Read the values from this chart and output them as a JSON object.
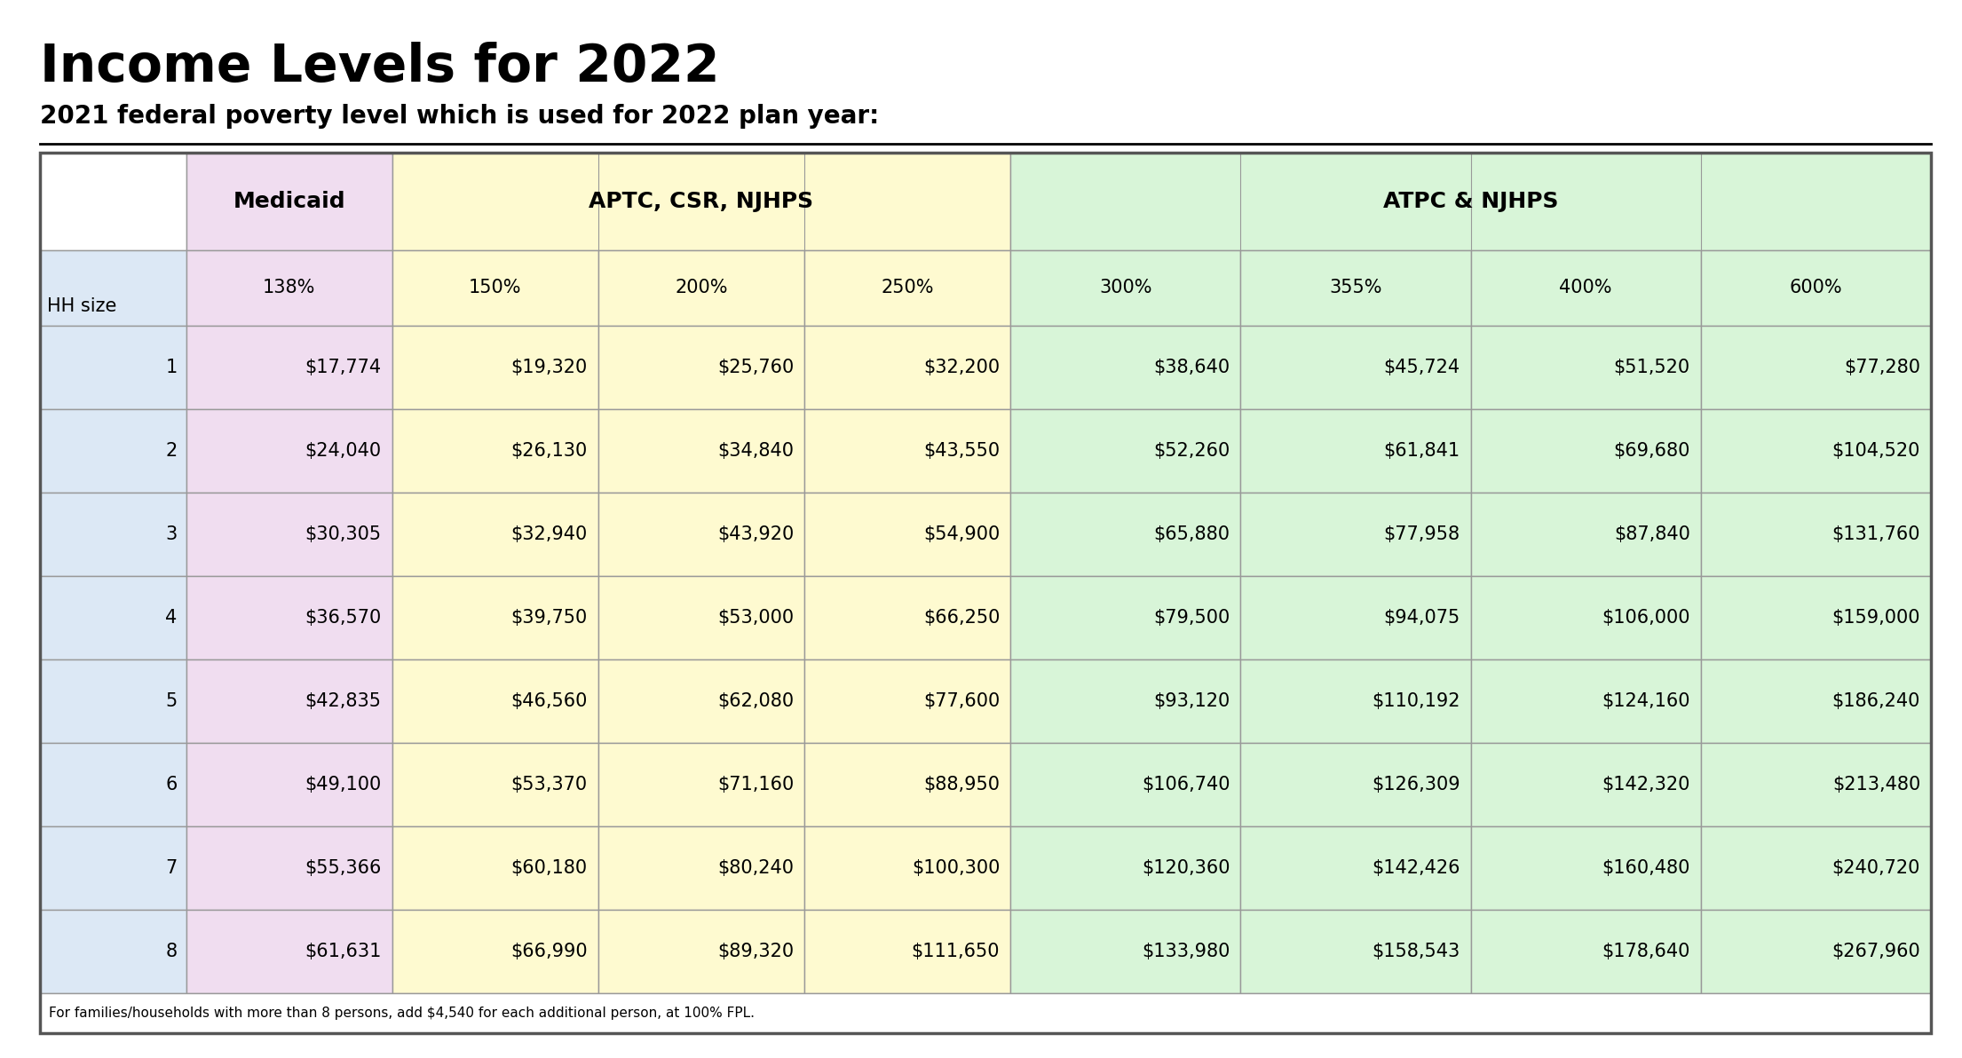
{
  "title": "Income Levels for 2022",
  "subtitle": "2021 federal poverty level which is used for 2022 plan year:",
  "footer": "For families/households with more than 8 persons, add $4,540 for each additional person, at 100% FPL.",
  "col_headers_row2": [
    "HH size",
    "138%",
    "150%",
    "200%",
    "250%",
    "300%",
    "355%",
    "400%",
    "600%"
  ],
  "rows": [
    [
      "1",
      "$17,774",
      "$19,320",
      "$25,760",
      "$32,200",
      "$38,640",
      "$45,724",
      "$51,520",
      "$77,280"
    ],
    [
      "2",
      "$24,040",
      "$26,130",
      "$34,840",
      "$43,550",
      "$52,260",
      "$61,841",
      "$69,680",
      "$104,520"
    ],
    [
      "3",
      "$30,305",
      "$32,940",
      "$43,920",
      "$54,900",
      "$65,880",
      "$77,958",
      "$87,840",
      "$131,760"
    ],
    [
      "4",
      "$36,570",
      "$39,750",
      "$53,000",
      "$66,250",
      "$79,500",
      "$94,075",
      "$106,000",
      "$159,000"
    ],
    [
      "5",
      "$42,835",
      "$46,560",
      "$62,080",
      "$77,600",
      "$93,120",
      "$110,192",
      "$124,160",
      "$186,240"
    ],
    [
      "6",
      "$49,100",
      "$53,370",
      "$71,160",
      "$88,950",
      "$106,740",
      "$126,309",
      "$142,320",
      "$213,480"
    ],
    [
      "7",
      "$55,366",
      "$60,180",
      "$80,240",
      "$100,300",
      "$120,360",
      "$142,426",
      "$160,480",
      "$240,720"
    ],
    [
      "8",
      "$61,631",
      "$66,990",
      "$89,320",
      "$111,650",
      "$133,980",
      "$158,543",
      "$178,640",
      "$267,960"
    ]
  ],
  "color_medicaid_header": "#f0ddf0",
  "color_aptc_header": "#fefad0",
  "color_atpc_header": "#d8f5d8",
  "color_hhsize_col": "#dce8f5",
  "color_medicaid_col": "#f0ddf0",
  "color_aptc_cols": "#fefad0",
  "color_atpc_cols": "#d8f5d8",
  "color_header1_empty": "#ffffff",
  "color_row_border": "#999999",
  "color_outer_border": "#555555",
  "bg_color": "#ffffff",
  "title_fontsize": 42,
  "subtitle_fontsize": 20,
  "header1_fontsize": 18,
  "header2_fontsize": 15,
  "data_fontsize": 15,
  "footer_fontsize": 11
}
